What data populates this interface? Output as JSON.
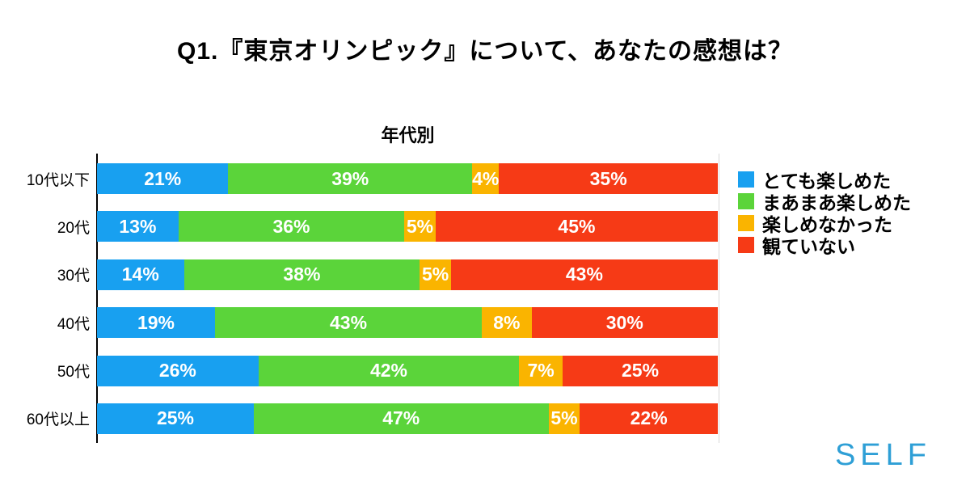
{
  "title": "Q1.『東京オリンピック』について、あなたの感想は？",
  "chart_data": {
    "type": "bar",
    "orientation": "horizontal",
    "stacked": true,
    "normalized_to_100": true,
    "title": "Q1.『東京オリンピック』について、あなたの感想は？",
    "subtitle": "年代別",
    "categories": [
      "10代以下",
      "20代",
      "30代",
      "40代",
      "50代",
      "60代以上"
    ],
    "series": [
      {
        "name": "とても楽しめた",
        "color": "#18A0F0",
        "values": [
          21,
          13,
          14,
          19,
          26,
          25
        ]
      },
      {
        "name": "まあまあ楽しめた",
        "color": "#5BD43A",
        "values": [
          39,
          36,
          38,
          43,
          42,
          47
        ]
      },
      {
        "name": "楽しめなかった",
        "color": "#FAB400",
        "values": [
          4,
          5,
          5,
          8,
          7,
          5
        ]
      },
      {
        "name": "観ていない",
        "color": "#F63A16",
        "values": [
          35,
          45,
          43,
          30,
          25,
          22
        ]
      }
    ],
    "value_suffix": "%",
    "value_label_color": "#ffffff",
    "legend_position": "right",
    "grid": false,
    "axis_color": "#000000",
    "right_boundary_color": "#d9d9d9"
  },
  "branding": {
    "logo_text": "SELF",
    "logo_color": "#2E9FD6"
  }
}
